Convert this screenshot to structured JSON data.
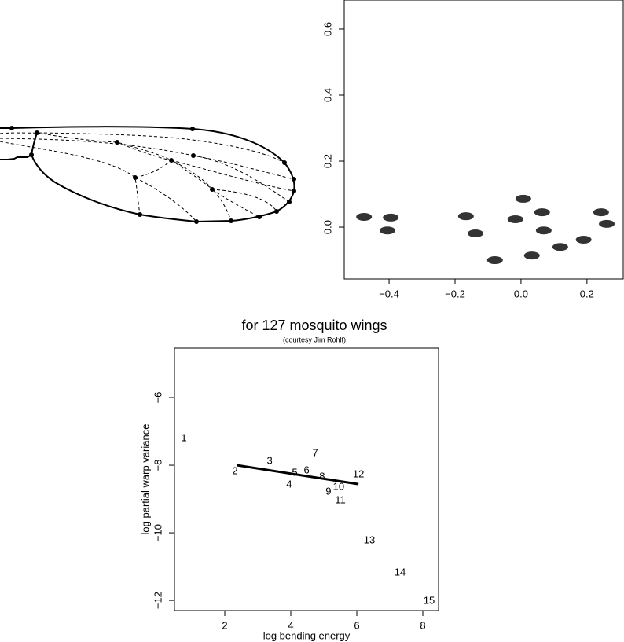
{
  "chart_data": [
    {
      "type": "scatter",
      "x": [
        -0.476,
        -0.395,
        -0.405,
        -0.167,
        -0.138,
        -0.079,
        0.007,
        -0.017,
        0.064,
        0.069,
        0.033,
        0.119,
        0.19,
        0.243,
        0.26
      ],
      "y": [
        0.031,
        0.029,
        -0.01,
        0.033,
        -0.019,
        -0.1,
        0.086,
        0.024,
        0.045,
        -0.01,
        -0.086,
        -0.06,
        -0.038,
        0.045,
        0.01
      ],
      "color": "#000000",
      "xlim": [
        -0.536,
        0.31
      ],
      "ylim": [
        -0.157,
        0.688
      ],
      "xticks": [
        {
          "value": -0.4,
          "label": "−0.4"
        },
        {
          "value": -0.2,
          "label": "−0.2"
        },
        {
          "value": 0,
          "label": "0.0"
        },
        0.2
      ],
      "yticks": [
        {
          "value": 0,
          "label": "0.0"
        },
        0.2,
        0.4,
        0.6
      ]
    },
    {
      "type": "text-scatter",
      "title": "for 127 mosquito wings",
      "subtitle": "(courtesy Jim Rohlf)",
      "x_label": "log bending energy",
      "y_label": "log partial warp variance",
      "categories": [
        "1",
        "2",
        "3",
        "4",
        "5",
        "6",
        "7",
        "8",
        "9",
        "10",
        "11",
        "12",
        "13",
        "14",
        "15"
      ],
      "x": [
        0.762,
        2.31,
        3.36,
        3.95,
        4.12,
        4.48,
        4.74,
        4.95,
        5.14,
        5.45,
        5.5,
        6.05,
        6.38,
        7.31,
        8.19
      ],
      "y": [
        -7.21,
        -8.19,
        -7.88,
        -8.58,
        -8.23,
        -8.16,
        -7.65,
        -8.35,
        -8.79,
        -8.65,
        -9.05,
        -8.28,
        -10.23,
        -11.19,
        -12.02
      ],
      "fit": {
        "x": [
          2.36,
          6.05
        ],
        "y": [
          -8.0,
          -8.56
        ]
      },
      "xlim": [
        0.476,
        8.476
      ],
      "ylim": [
        -12.3,
        -4.535
      ],
      "xticks": [
        2,
        4,
        6,
        8
      ],
      "yticks": [
        {
          "value": -6,
          "label": "−6"
        },
        {
          "value": -8,
          "label": "−8"
        },
        {
          "value": -10,
          "label": "−10"
        },
        {
          "value": -12,
          "label": "−12"
        }
      ]
    }
  ]
}
